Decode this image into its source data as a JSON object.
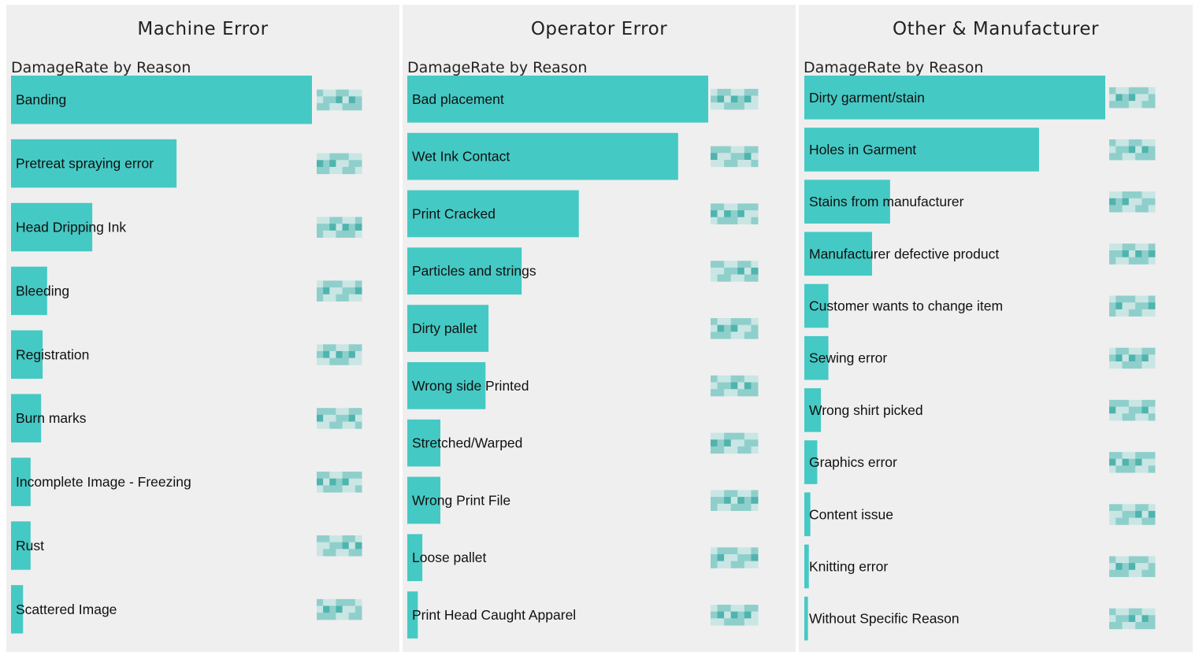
{
  "colors": {
    "bar": "#45c9c4",
    "panel_bg": "#efefef",
    "header_text": "#222222"
  },
  "panels": [
    {
      "header": "Machine Error",
      "chart_title": "DamageRate by Reason"
    },
    {
      "header": "Operator Error",
      "chart_title": "DamageRate by Reason"
    },
    {
      "header": "Other & Manufacturer",
      "chart_title": "DamageRate by Reason"
    }
  ],
  "chart_data": [
    {
      "type": "bar",
      "orientation": "horizontal",
      "title": "DamageRate by Reason",
      "categories": [
        "Banding",
        "Pretreat spraying error",
        "Head Dripping Ink",
        "Bleeding",
        "Registration",
        "Burn marks",
        "Incomplete Image - Freezing",
        "Rust",
        "Scattered Image"
      ],
      "values": [
        100,
        55,
        27,
        12,
        10.5,
        10,
        6.5,
        6.5,
        4
      ],
      "data_labels": "obscured (pixelated)"
    },
    {
      "type": "bar",
      "orientation": "horizontal",
      "title": "DamageRate by Reason",
      "categories": [
        "Bad placement",
        "Wet Ink Contact",
        "Print Cracked",
        "Particles and strings",
        "Dirty pallet",
        "Wrong side Printed",
        "Stretched/Warped",
        "Wrong Print File",
        "Loose pallet",
        "Print Head Caught Apparel"
      ],
      "values": [
        100,
        90,
        57,
        38,
        27,
        26,
        11,
        11,
        5,
        3.5
      ],
      "data_labels": "obscured (pixelated)"
    },
    {
      "type": "bar",
      "orientation": "horizontal",
      "title": "DamageRate by Reason",
      "categories": [
        "Dirty garment/stain",
        "Holes in Garment",
        "Stains from manufacturer",
        "Manufacturer defective product",
        "Customer wants to change item",
        "Sewing error",
        "Wrong shirt picked",
        "Graphics error",
        "Content issue",
        "Knitting error",
        "Without Specific Reason"
      ],
      "values": [
        100,
        78,
        28.5,
        22.5,
        8,
        8,
        5.5,
        4.3,
        2,
        1.5,
        1.2
      ],
      "data_labels": "obscured (pixelated)"
    }
  ]
}
